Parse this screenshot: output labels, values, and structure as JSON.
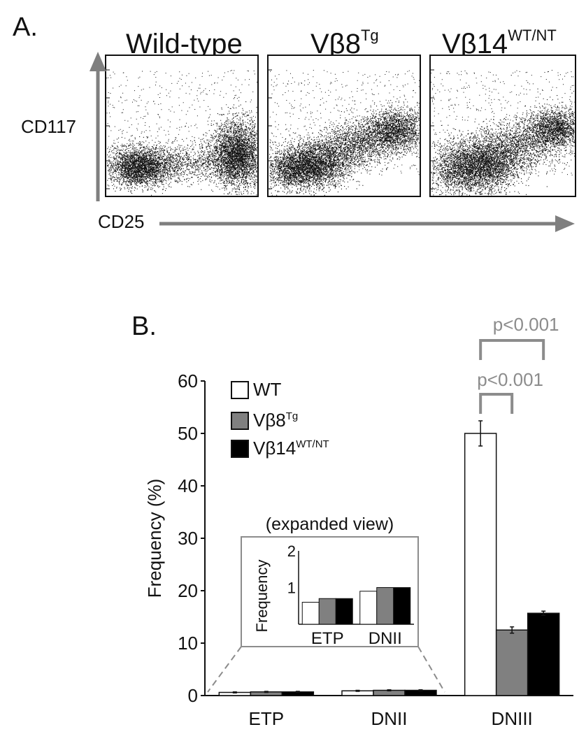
{
  "colors": {
    "wt": "#ffffff",
    "vb8": "#808080",
    "vb14": "#000000",
    "arrow": "#7f7f7f",
    "pval": "#8c8c8c"
  },
  "panel_a": {
    "label": "A.",
    "ylabel": "CD117",
    "xlabel": "CD25",
    "titles": [
      {
        "base": "Wild-type",
        "sup": ""
      },
      {
        "base": "Vβ8",
        "sup": "Tg"
      },
      {
        "base": "Vβ14",
        "sup": "WT/NT"
      }
    ]
  },
  "panel_b": {
    "label": "B.",
    "legend": [
      {
        "base": "WT",
        "sup": "",
        "color": "#ffffff"
      },
      {
        "base": "Vβ8",
        "sup": "Tg",
        "color": "#808080"
      },
      {
        "base": "Vβ14",
        "sup": "WT/NT",
        "color": "#000000"
      }
    ],
    "inset": {
      "title": "(expanded view)",
      "ylabel": "Frequency",
      "ytick_labels": [
        "1",
        "2"
      ]
    },
    "pvalues": [
      "p<0.001",
      "p<0.001"
    ]
  },
  "chart_data": [
    {
      "type": "scatter",
      "panels": [
        "Wild-type",
        "Vβ8Tg",
        "Vβ14WT/NT"
      ],
      "xlabel": "CD25",
      "ylabel": "CD117"
    },
    {
      "type": "bar",
      "categories": [
        "ETP",
        "DNII",
        "DNIII"
      ],
      "series": [
        {
          "name": "WT",
          "values": [
            0.6,
            0.9,
            50
          ],
          "errors": [
            0.1,
            0.1,
            2.4
          ]
        },
        {
          "name": "Vβ8Tg",
          "values": [
            0.7,
            1.0,
            12.5
          ],
          "errors": [
            0.1,
            0.1,
            0.6
          ]
        },
        {
          "name": "Vβ14WT/NT",
          "values": [
            0.7,
            1.0,
            15.7
          ],
          "errors": [
            0.1,
            0.1,
            0.4
          ]
        }
      ],
      "ylabel": "Frequency (%)",
      "ylim": [
        0,
        60
      ],
      "yticks": [
        0,
        10,
        20,
        30,
        40,
        50,
        60
      ],
      "inset": {
        "title": "(expanded view)",
        "categories": [
          "ETP",
          "DNII"
        ],
        "ylim": [
          0,
          2
        ],
        "series": [
          {
            "name": "WT",
            "values": [
              0.6,
              0.9
            ]
          },
          {
            "name": "Vβ8Tg",
            "values": [
              0.7,
              1.0
            ]
          },
          {
            "name": "Vβ14WT/NT",
            "values": [
              0.7,
              1.0
            ]
          }
        ]
      },
      "annotations": [
        {
          "text": "p<0.001",
          "from": "WT",
          "to": "Vβ8Tg",
          "category": "DNIII"
        },
        {
          "text": "p<0.001",
          "from": "WT",
          "to": "Vβ14WT/NT",
          "category": "DNIII"
        }
      ],
      "grid": false,
      "legend_position": "top-left"
    }
  ]
}
